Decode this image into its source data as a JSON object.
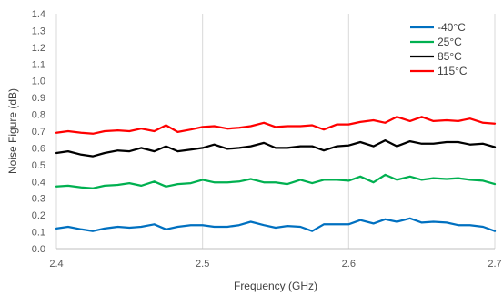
{
  "chart_data": {
    "type": "line",
    "title": "",
    "xlabel": "Frequency (GHz)",
    "ylabel": "Noise Figure (dB)",
    "xlim": [
      2.4,
      2.7
    ],
    "ylim": [
      0.0,
      1.4
    ],
    "x_ticks": [
      "2.4",
      "2.5",
      "2.6",
      "2.7"
    ],
    "y_ticks": [
      "0.0",
      "0.1",
      "0.2",
      "0.3",
      "0.4",
      "0.5",
      "0.6",
      "0.7",
      "0.8",
      "0.9",
      "1.0",
      "1.1",
      "1.2",
      "1.3",
      "1.4"
    ],
    "grid": "vertical",
    "legend_position": "top-right",
    "x": [
      2.4,
      2.408,
      2.417,
      2.425,
      2.433,
      2.442,
      2.45,
      2.458,
      2.467,
      2.475,
      2.483,
      2.492,
      2.5,
      2.508,
      2.517,
      2.525,
      2.533,
      2.542,
      2.55,
      2.558,
      2.567,
      2.575,
      2.583,
      2.592,
      2.6,
      2.608,
      2.617,
      2.625,
      2.633,
      2.642,
      2.65,
      2.658,
      2.667,
      2.675,
      2.683,
      2.692,
      2.7
    ],
    "series": [
      {
        "name": "-40°C",
        "color": "#0070C0",
        "values": [
          0.12,
          0.13,
          0.115,
          0.105,
          0.12,
          0.13,
          0.125,
          0.13,
          0.145,
          0.115,
          0.13,
          0.14,
          0.14,
          0.13,
          0.13,
          0.14,
          0.16,
          0.14,
          0.125,
          0.135,
          0.13,
          0.105,
          0.145,
          0.145,
          0.145,
          0.17,
          0.15,
          0.175,
          0.16,
          0.18,
          0.155,
          0.16,
          0.155,
          0.14,
          0.14,
          0.13,
          0.105
        ]
      },
      {
        "name": "25°C",
        "color": "#00B050",
        "values": [
          0.37,
          0.375,
          0.365,
          0.36,
          0.375,
          0.38,
          0.39,
          0.375,
          0.4,
          0.37,
          0.385,
          0.39,
          0.41,
          0.395,
          0.395,
          0.4,
          0.415,
          0.395,
          0.395,
          0.385,
          0.41,
          0.39,
          0.41,
          0.41,
          0.405,
          0.43,
          0.395,
          0.44,
          0.41,
          0.43,
          0.41,
          0.42,
          0.415,
          0.42,
          0.41,
          0.405,
          0.385
        ]
      },
      {
        "name": "85°C",
        "color": "#000000",
        "values": [
          0.57,
          0.58,
          0.56,
          0.55,
          0.57,
          0.585,
          0.58,
          0.6,
          0.58,
          0.61,
          0.58,
          0.59,
          0.6,
          0.62,
          0.595,
          0.6,
          0.61,
          0.63,
          0.6,
          0.6,
          0.61,
          0.61,
          0.585,
          0.61,
          0.615,
          0.635,
          0.61,
          0.645,
          0.61,
          0.64,
          0.625,
          0.625,
          0.635,
          0.635,
          0.62,
          0.625,
          0.605
        ]
      },
      {
        "name": "115°C",
        "color": "#FF0000",
        "values": [
          0.69,
          0.7,
          0.69,
          0.685,
          0.7,
          0.705,
          0.7,
          0.715,
          0.7,
          0.735,
          0.695,
          0.71,
          0.725,
          0.73,
          0.715,
          0.72,
          0.73,
          0.75,
          0.725,
          0.73,
          0.73,
          0.735,
          0.71,
          0.74,
          0.74,
          0.755,
          0.765,
          0.75,
          0.785,
          0.76,
          0.785,
          0.76,
          0.765,
          0.76,
          0.775,
          0.75,
          0.745
        ]
      }
    ]
  }
}
